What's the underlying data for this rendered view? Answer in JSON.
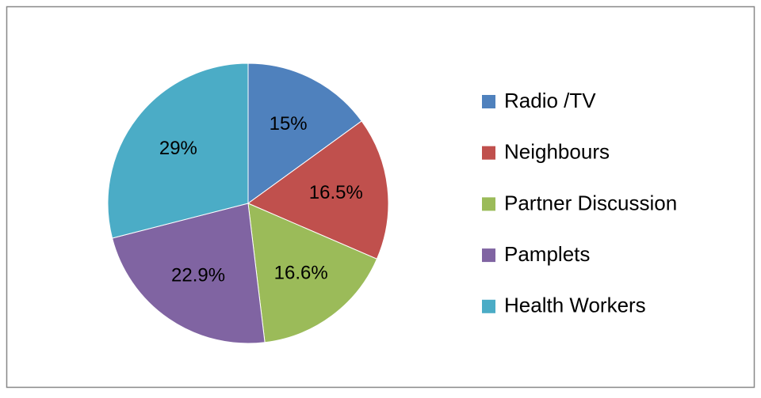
{
  "chart_data": {
    "type": "pie",
    "categories": [
      "Radio /TV",
      "Neighbours",
      "Partner Discussion",
      "Pamplets",
      "Health Workers"
    ],
    "values": [
      15,
      16.5,
      16.6,
      22.9,
      29
    ],
    "value_labels": [
      "15%",
      "16.5%",
      "16.6%",
      "22.9%",
      "29%"
    ],
    "colors": [
      "#4f81bd",
      "#c0504d",
      "#9bbb59",
      "#8064a2",
      "#4bacc6"
    ],
    "legend": "right"
  }
}
